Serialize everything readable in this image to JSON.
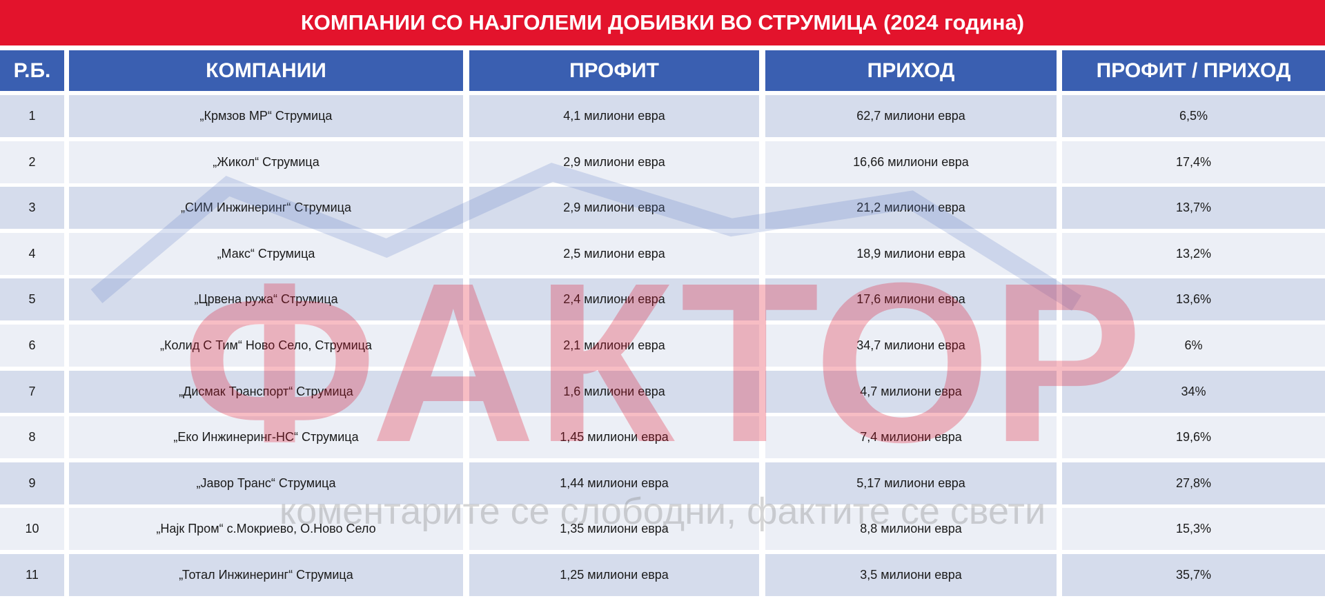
{
  "title": "КОМПАНИИ СО НАЈГОЛЕМИ ДОБИВКИ ВО СТРУМИЦА (2024 година)",
  "table": {
    "header": [
      "Р.Б.",
      "КОМПАНИИ",
      "ПРОФИТ",
      "ПРИХОД",
      "ПРОФИТ / ПРИХОД"
    ],
    "rows": [
      [
        "1",
        "„Крмзов МР“ Струмица",
        "4,1 милиони евра",
        "62,7 милиони евра",
        "6,5%"
      ],
      [
        "2",
        "„Жикол“ Струмица",
        "2,9 милиони евра",
        "16,66 милиони евра",
        "17,4%"
      ],
      [
        "3",
        "„СИМ Инжинеринг“ Струмица",
        "2,9 милиони евра",
        "21,2 милиони евра",
        "13,7%"
      ],
      [
        "4",
        "„Макс“ Струмица",
        "2,5 милиони евра",
        "18,9 милиони евра",
        "13,2%"
      ],
      [
        "5",
        "„Црвена ружа“ Струмица",
        "2,4 милиони евра",
        "17,6 милиони евра",
        "13,6%"
      ],
      [
        "6",
        "„Колид С Тим“ Ново Село, Струмица",
        "2,1 милиони евра",
        "34,7 милиони евра",
        "6%"
      ],
      [
        "7",
        "„Дисмак Транспорт“ Струмица",
        "1,6 милиони евра",
        "4,7 милиони евра",
        "34%"
      ],
      [
        "8",
        "„Еко Инжинеринг-НС“ Струмица",
        "1,45 милиони евра",
        "7,4 милиони евра",
        "19,6%"
      ],
      [
        "9",
        "„Јавор Транс“ Струмица",
        "1,44 милиони евра",
        "5,17 милиони евра",
        "27,8%"
      ],
      [
        "10",
        "„Најк Пром“ с.Мокриево, О.Ново Село",
        "1,35 милиони евра",
        "8,8 милиони евра",
        "15,3%"
      ],
      [
        "11",
        "„Тотал Инжинеринг“ Струмица",
        "1,25 милиони евра",
        "3,5 милиони евра",
        "35,7%"
      ]
    ]
  },
  "watermark": {
    "logo": "ФАКТОР",
    "slogan": "коментарите се слободни, фактите се свети"
  }
}
